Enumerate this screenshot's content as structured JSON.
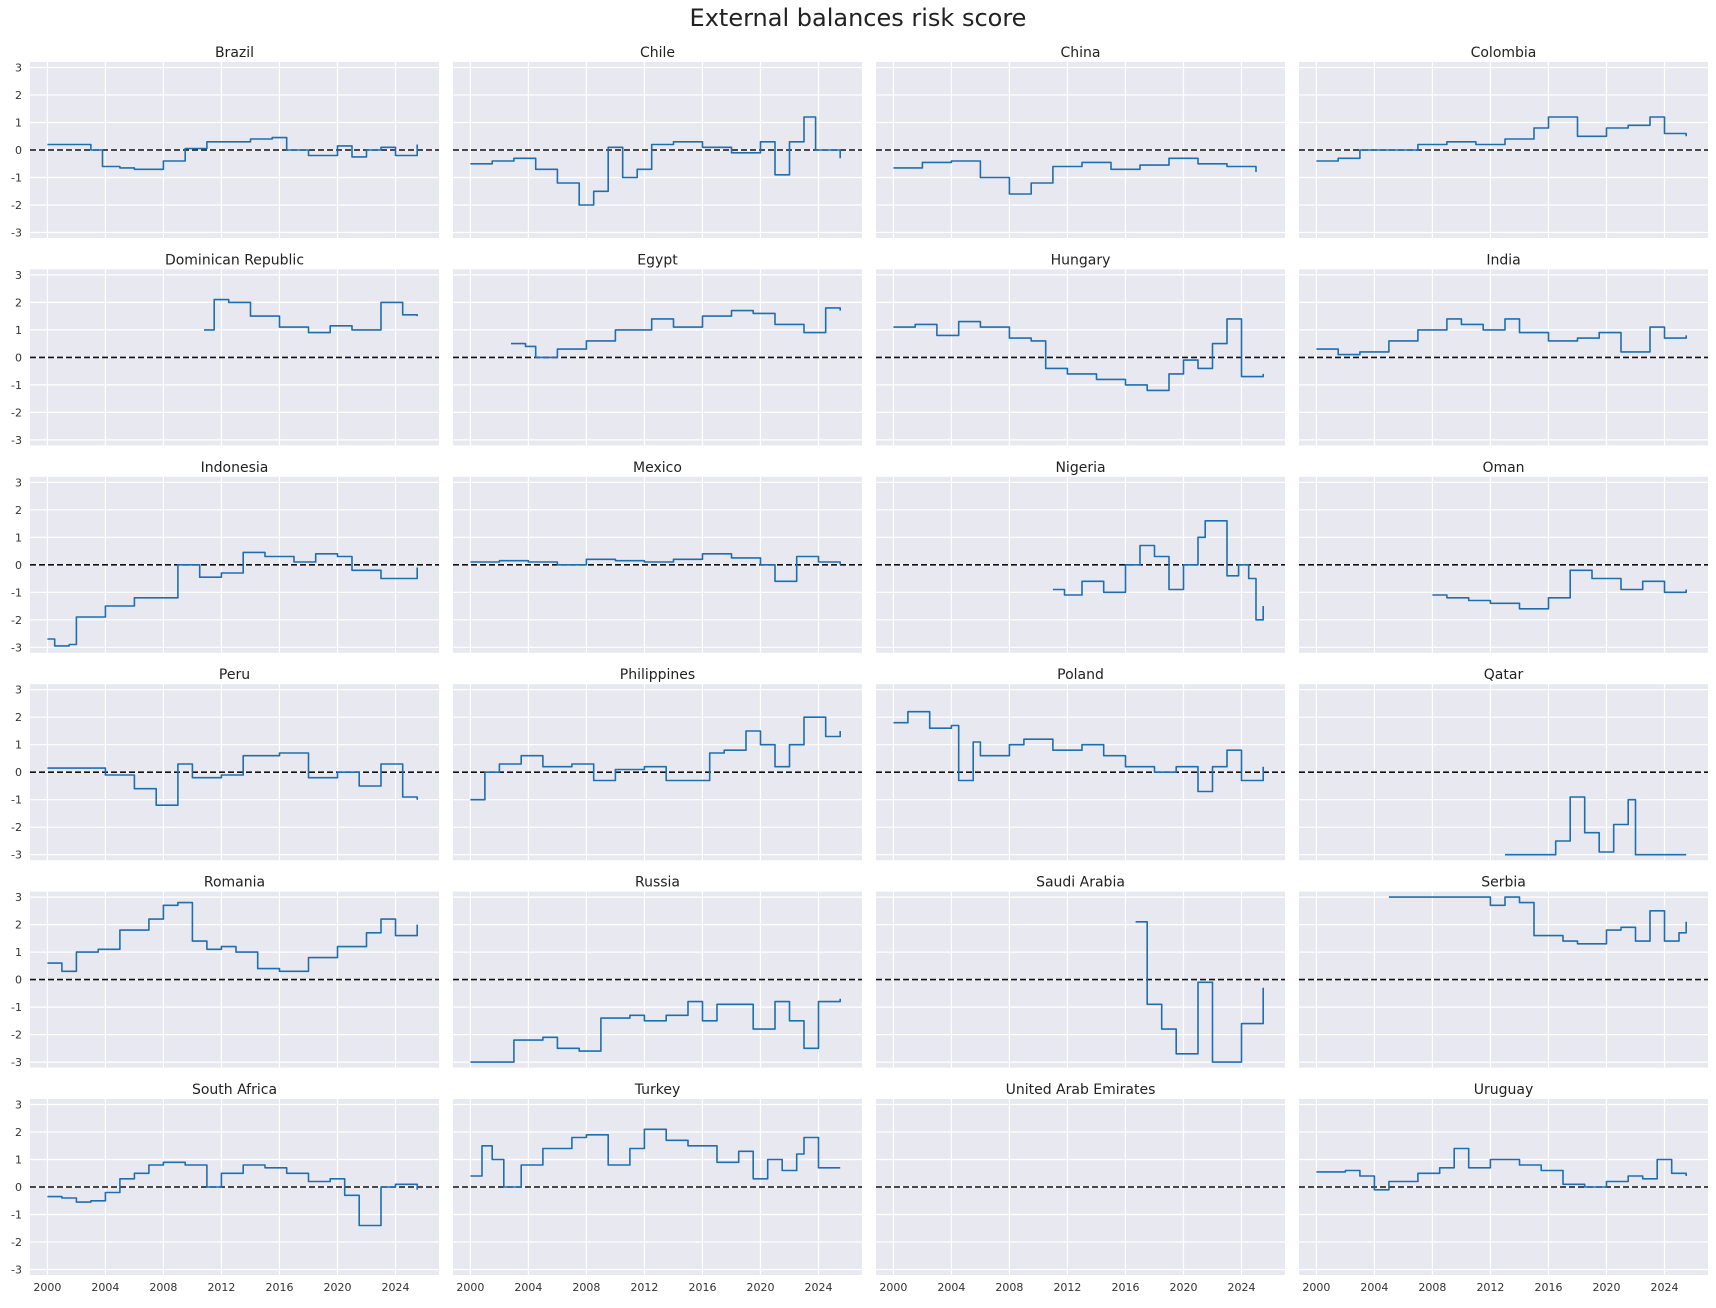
{
  "chart_data": {
    "type": "line",
    "title": "External balances risk score",
    "ylim": [
      -3.2,
      3.2
    ],
    "yticks": [
      -3,
      -2,
      -1,
      0,
      1,
      2,
      3
    ],
    "xlim": [
      1998.8,
      2027.0
    ],
    "xticks": [
      2000,
      2004,
      2008,
      2012,
      2016,
      2020,
      2024
    ],
    "zero_line": 0,
    "line_color": "#1f6fad",
    "panel_background": "#e8e8f0",
    "panels": [
      {
        "name": "Brazil",
        "x": [
          2000,
          2001.5,
          2003,
          2003.8,
          2005,
          2006,
          2008,
          2009.5,
          2011,
          2012.5,
          2014,
          2015.5,
          2016.5,
          2018,
          2020,
          2021,
          2022,
          2023,
          2024,
          2025.5
        ],
        "y": [
          0.2,
          0.2,
          0.0,
          -0.6,
          -0.65,
          -0.7,
          -0.4,
          0.05,
          0.3,
          0.3,
          0.4,
          0.45,
          0.0,
          -0.2,
          0.15,
          -0.25,
          0.0,
          0.1,
          -0.2,
          0.2
        ]
      },
      {
        "name": "Chile",
        "x": [
          2000,
          2001.5,
          2003,
          2004.5,
          2006,
          2007.5,
          2008.5,
          2009.5,
          2010.5,
          2011.5,
          2012.5,
          2014,
          2016,
          2018,
          2020,
          2021,
          2022,
          2023,
          2023.8,
          2025.5
        ],
        "y": [
          -0.5,
          -0.4,
          -0.3,
          -0.7,
          -1.2,
          -2.0,
          -1.5,
          0.1,
          -1.0,
          -0.7,
          0.2,
          0.3,
          0.1,
          -0.1,
          0.3,
          -0.9,
          0.3,
          1.2,
          0.0,
          -0.3
        ]
      },
      {
        "name": "China",
        "x": [
          2000,
          2002,
          2004,
          2006,
          2008,
          2009.5,
          2011,
          2013,
          2015,
          2017,
          2019,
          2021,
          2023,
          2025
        ],
        "y": [
          -0.65,
          -0.45,
          -0.4,
          -1.0,
          -1.6,
          -1.2,
          -0.6,
          -0.45,
          -0.7,
          -0.55,
          -0.3,
          -0.5,
          -0.6,
          -0.8
        ]
      },
      {
        "name": "Colombia",
        "x": [
          2000,
          2001.5,
          2003,
          2005,
          2007,
          2009,
          2011,
          2013,
          2015,
          2016,
          2018,
          2020,
          2021.5,
          2023,
          2024,
          2025.5
        ],
        "y": [
          -0.4,
          -0.3,
          0.0,
          0.0,
          0.2,
          0.3,
          0.2,
          0.4,
          0.8,
          1.2,
          0.5,
          0.8,
          0.9,
          1.2,
          0.6,
          0.5
        ]
      },
      {
        "name": "Dominican Republic",
        "x": [
          2010.8,
          2011.5,
          2012.5,
          2014,
          2016,
          2018,
          2019.5,
          2021,
          2023,
          2024.5,
          2025.5
        ],
        "y": [
          1.0,
          2.1,
          2.0,
          1.5,
          1.1,
          0.9,
          1.15,
          1.0,
          2.0,
          1.55,
          1.5
        ]
      },
      {
        "name": "Egypt",
        "x": [
          2002.8,
          2003.8,
          2004.5,
          2006,
          2008,
          2010,
          2012.5,
          2014,
          2016,
          2018,
          2019.5,
          2021,
          2023,
          2024.5,
          2025.5
        ],
        "y": [
          0.5,
          0.4,
          0.0,
          0.3,
          0.6,
          1.0,
          1.4,
          1.1,
          1.5,
          1.7,
          1.6,
          1.2,
          0.9,
          1.8,
          1.7
        ]
      },
      {
        "name": "Hungary",
        "x": [
          2000,
          2001.5,
          2003,
          2004.5,
          2006,
          2008,
          2009.5,
          2010.5,
          2012,
          2014,
          2016,
          2017.5,
          2019,
          2020,
          2021,
          2022,
          2023,
          2024,
          2025.5
        ],
        "y": [
          1.1,
          1.2,
          0.8,
          1.3,
          1.1,
          0.7,
          0.6,
          -0.4,
          -0.6,
          -0.8,
          -1.0,
          -1.2,
          -0.6,
          -0.1,
          -0.4,
          0.5,
          1.4,
          -0.7,
          -0.6
        ]
      },
      {
        "name": "India",
        "x": [
          2000,
          2001.5,
          2003,
          2005,
          2007,
          2009,
          2010,
          2011.5,
          2013,
          2014,
          2016,
          2018,
          2019.5,
          2021,
          2023,
          2024,
          2025.5
        ],
        "y": [
          0.3,
          0.1,
          0.2,
          0.6,
          1.0,
          1.4,
          1.2,
          1.0,
          1.4,
          0.9,
          0.6,
          0.7,
          0.9,
          0.2,
          1.1,
          0.7,
          0.8
        ]
      },
      {
        "name": "Indonesia",
        "x": [
          2000,
          2000.5,
          2001.5,
          2002,
          2004,
          2006,
          2007.5,
          2009,
          2010.5,
          2012,
          2013.5,
          2015,
          2017,
          2018.5,
          2020,
          2021,
          2023,
          2025.5
        ],
        "y": [
          -2.7,
          -2.95,
          -2.9,
          -1.9,
          -1.5,
          -1.2,
          -1.2,
          0.0,
          -0.45,
          -0.3,
          0.45,
          0.3,
          0.1,
          0.4,
          0.3,
          -0.2,
          -0.5,
          -0.1
        ]
      },
      {
        "name": "Mexico",
        "x": [
          2000,
          2002,
          2004,
          2006,
          2008,
          2010,
          2012,
          2014,
          2016,
          2018,
          2020,
          2021,
          2022.5,
          2024,
          2025.5
        ],
        "y": [
          0.1,
          0.15,
          0.1,
          0.0,
          0.2,
          0.15,
          0.1,
          0.2,
          0.4,
          0.25,
          0.0,
          -0.6,
          0.3,
          0.1,
          0.0
        ]
      },
      {
        "name": "Nigeria",
        "x": [
          2011,
          2011.8,
          2013,
          2014.5,
          2016,
          2017,
          2018,
          2019,
          2020,
          2021,
          2021.5,
          2023,
          2023.8,
          2024.5,
          2025,
          2025.5
        ],
        "y": [
          -0.9,
          -1.1,
          -0.6,
          -1.0,
          0.0,
          0.7,
          0.3,
          -0.9,
          0.0,
          1.0,
          1.6,
          -0.4,
          0.0,
          -0.5,
          -2.0,
          -1.5
        ]
      },
      {
        "name": "Oman",
        "x": [
          2008,
          2009,
          2010.5,
          2012,
          2014,
          2016,
          2017.5,
          2019,
          2021,
          2022.5,
          2024,
          2025.5
        ],
        "y": [
          -1.1,
          -1.2,
          -1.3,
          -1.4,
          -1.6,
          -1.2,
          -0.2,
          -0.5,
          -0.9,
          -0.6,
          -1.0,
          -0.9
        ]
      },
      {
        "name": "Peru",
        "x": [
          2000,
          2002,
          2004,
          2006,
          2007.5,
          2009,
          2010,
          2012,
          2013.5,
          2016,
          2018,
          2020,
          2021.5,
          2023,
          2024.5,
          2025.5
        ],
        "y": [
          0.15,
          0.15,
          -0.1,
          -0.6,
          -1.2,
          0.3,
          -0.2,
          -0.1,
          0.6,
          0.7,
          -0.2,
          0.0,
          -0.5,
          0.3,
          -0.9,
          -1.0
        ]
      },
      {
        "name": "Philippines",
        "x": [
          2000,
          2001,
          2002,
          2003.5,
          2005,
          2007,
          2008.5,
          2010,
          2012,
          2013.5,
          2015,
          2016.5,
          2017.5,
          2019,
          2020,
          2021,
          2022,
          2023,
          2024.5,
          2025.5
        ],
        "y": [
          -1.0,
          0.0,
          0.3,
          0.6,
          0.2,
          0.3,
          -0.3,
          0.1,
          0.2,
          -0.3,
          -0.3,
          0.7,
          0.8,
          1.5,
          1.0,
          0.2,
          1.0,
          2.0,
          1.3,
          1.5
        ]
      },
      {
        "name": "Poland",
        "x": [
          2000,
          2001,
          2002.5,
          2004,
          2004.5,
          2005.5,
          2006,
          2008,
          2009,
          2011,
          2013,
          2014.5,
          2016,
          2018,
          2019.5,
          2021,
          2022,
          2023,
          2024,
          2025.5
        ],
        "y": [
          1.8,
          2.2,
          1.6,
          1.7,
          -0.3,
          1.1,
          0.6,
          1.0,
          1.2,
          0.8,
          1.0,
          0.6,
          0.2,
          0.0,
          0.2,
          -0.7,
          0.2,
          0.8,
          -0.3,
          0.2
        ]
      },
      {
        "name": "Qatar",
        "x": [
          2013,
          2016,
          2016.5,
          2017.5,
          2018.5,
          2019.5,
          2020.5,
          2021.5,
          2022,
          2025.5
        ],
        "y": [
          -3.0,
          -3.0,
          -2.5,
          -0.9,
          -2.2,
          -2.9,
          -1.9,
          -1.0,
          -3.0,
          -3.0
        ]
      },
      {
        "name": "Romania",
        "x": [
          2000,
          2001,
          2002,
          2003.5,
          2005,
          2007,
          2008,
          2009,
          2010,
          2011,
          2012,
          2013,
          2014.5,
          2016,
          2018,
          2020,
          2022,
          2023,
          2024,
          2025.5
        ],
        "y": [
          0.6,
          0.3,
          1.0,
          1.1,
          1.8,
          2.2,
          2.7,
          2.8,
          1.4,
          1.1,
          1.2,
          1.0,
          0.4,
          0.3,
          0.8,
          1.2,
          1.7,
          2.2,
          1.6,
          2.0
        ]
      },
      {
        "name": "Russia",
        "x": [
          2000,
          2002,
          2003,
          2005,
          2006,
          2007.5,
          2009,
          2011,
          2012,
          2013.5,
          2015,
          2016,
          2017,
          2018.5,
          2019.5,
          2021,
          2022,
          2023,
          2024,
          2025.5
        ],
        "y": [
          -3.0,
          -3.0,
          -2.2,
          -2.1,
          -2.5,
          -2.6,
          -1.4,
          -1.3,
          -1.5,
          -1.3,
          -0.8,
          -1.5,
          -0.9,
          -0.9,
          -1.8,
          -0.8,
          -1.5,
          -2.5,
          -0.8,
          -0.7
        ]
      },
      {
        "name": "Saudi Arabia",
        "x": [
          2016.7,
          2017,
          2017.5,
          2018.5,
          2019.5,
          2021,
          2022,
          2023,
          2024,
          2025.5
        ],
        "y": [
          2.1,
          2.1,
          -0.9,
          -1.8,
          -2.7,
          -0.1,
          -3.0,
          -3.0,
          -1.6,
          -0.3
        ]
      },
      {
        "name": "Serbia",
        "x": [
          2005,
          2007,
          2009,
          2010.5,
          2012,
          2013,
          2014,
          2015,
          2017,
          2018,
          2020,
          2021,
          2022,
          2023,
          2024,
          2025,
          2025.5
        ],
        "y": [
          3.0,
          3.0,
          3.0,
          3.0,
          2.7,
          3.0,
          2.8,
          1.6,
          1.4,
          1.3,
          1.8,
          1.9,
          1.4,
          2.5,
          1.4,
          1.7,
          2.1
        ]
      },
      {
        "name": "South Africa",
        "x": [
          2000,
          2001,
          2002,
          2003,
          2004,
          2005,
          2006,
          2007,
          2008,
          2009.5,
          2011,
          2012,
          2013.5,
          2015,
          2016.5,
          2018,
          2019.5,
          2020.5,
          2021.5,
          2023,
          2024,
          2025.5
        ],
        "y": [
          -0.35,
          -0.4,
          -0.55,
          -0.5,
          -0.2,
          0.3,
          0.5,
          0.8,
          0.9,
          0.8,
          0.0,
          0.5,
          0.8,
          0.7,
          0.5,
          0.2,
          0.3,
          -0.3,
          -1.4,
          0.0,
          0.1,
          -0.1
        ]
      },
      {
        "name": "Turkey",
        "x": [
          2000,
          2000.8,
          2001.5,
          2002.3,
          2003.5,
          2005,
          2007,
          2008,
          2009.5,
          2011,
          2012,
          2013.5,
          2015,
          2017,
          2018.5,
          2019.5,
          2020.5,
          2021.5,
          2022.5,
          2023,
          2024,
          2025.5
        ],
        "y": [
          0.4,
          1.5,
          1.0,
          0.0,
          0.8,
          1.4,
          1.8,
          1.9,
          0.8,
          1.4,
          2.1,
          1.7,
          1.5,
          0.9,
          1.3,
          0.3,
          1.0,
          0.6,
          1.2,
          1.8,
          0.7,
          0.7
        ]
      },
      {
        "name": "United Arab Emirates",
        "x": [],
        "y": []
      },
      {
        "name": "Uruguay",
        "x": [
          2000,
          2002,
          2003,
          2004,
          2005,
          2007,
          2008.5,
          2009.5,
          2010.5,
          2012,
          2014,
          2015.5,
          2017,
          2018.5,
          2020,
          2021.5,
          2022.5,
          2023.5,
          2024.5,
          2025.5
        ],
        "y": [
          0.55,
          0.6,
          0.4,
          -0.1,
          0.2,
          0.5,
          0.7,
          1.4,
          0.7,
          1.0,
          0.8,
          0.6,
          0.1,
          0.0,
          0.2,
          0.4,
          0.3,
          1.0,
          0.5,
          0.4
        ]
      }
    ]
  }
}
